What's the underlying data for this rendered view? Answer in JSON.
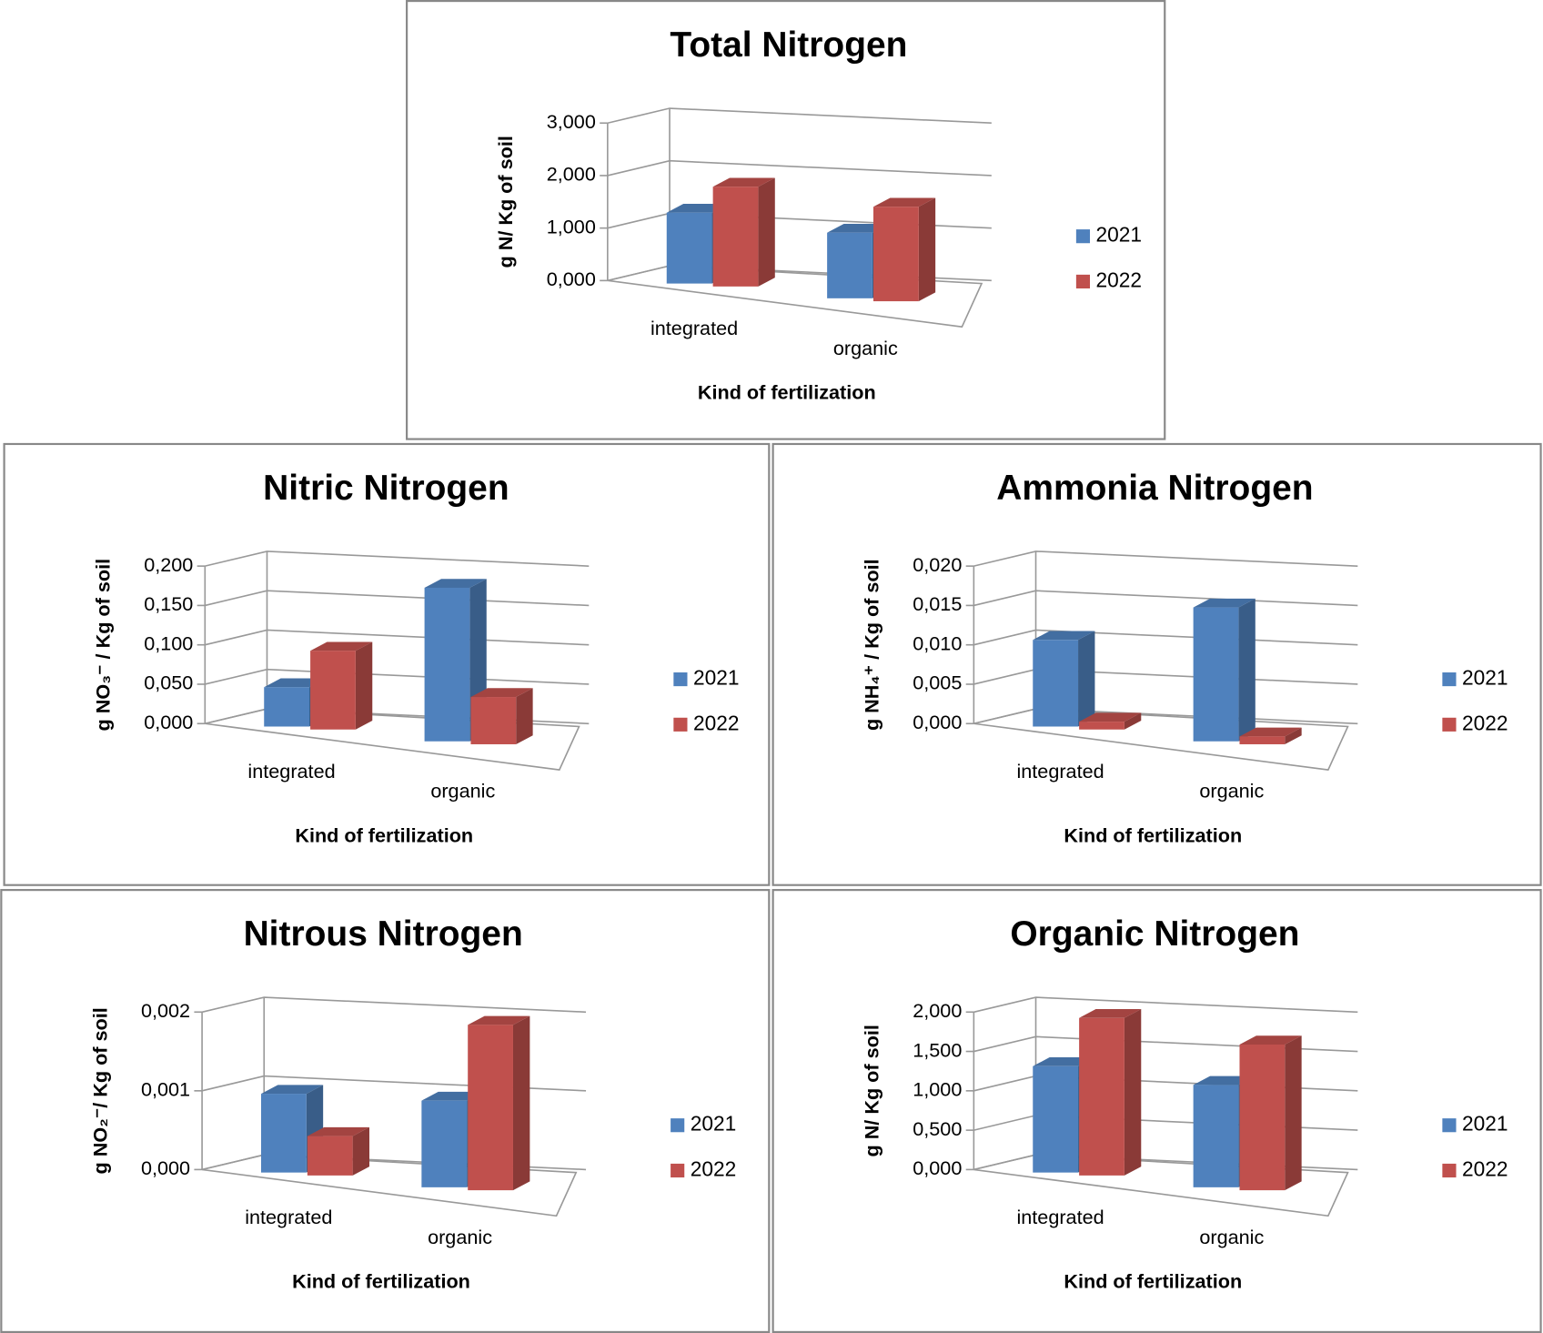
{
  "chart_data": [
    {
      "type": "bar",
      "title": "Total Nitrogen",
      "y_label": "g N/ Kg of soil",
      "x_label": "Kind of fertilization",
      "categories": [
        "integrated",
        "organic"
      ],
      "series": [
        {
          "name": "2021",
          "color": "#4f81bd",
          "values": [
            1.35,
            1.25
          ]
        },
        {
          "name": "2022",
          "color": "#c0504d",
          "values": [
            1.9,
            1.8
          ]
        }
      ],
      "ylim": [
        0,
        3
      ],
      "yticks": [
        {
          "value": 0,
          "label": "0,000"
        },
        {
          "value": 1,
          "label": "1,000"
        },
        {
          "value": 2,
          "label": "2,000"
        },
        {
          "value": 3,
          "label": "3,000"
        }
      ]
    },
    {
      "type": "bar",
      "title": "Nitric Nitrogen",
      "y_label": "g NO₃⁻ / Kg of soil",
      "x_label": "Kind of fertilization",
      "categories": [
        "integrated",
        "organic"
      ],
      "series": [
        {
          "name": "2021",
          "color": "#4f81bd",
          "values": [
            0.05,
            0.195
          ]
        },
        {
          "name": "2022",
          "color": "#c0504d",
          "values": [
            0.1,
            0.06
          ]
        }
      ],
      "ylim": [
        0,
        0.2
      ],
      "yticks": [
        {
          "value": 0,
          "label": "0,000"
        },
        {
          "value": 0.05,
          "label": "0,050"
        },
        {
          "value": 0.1,
          "label": "0,100"
        },
        {
          "value": 0.15,
          "label": "0,150"
        },
        {
          "value": 0.2,
          "label": "0,200"
        }
      ]
    },
    {
      "type": "bar",
      "title": "Ammonia Nitrogen",
      "y_label": "g NH₄⁺ / Kg of soil",
      "x_label": "Kind of fertilization",
      "categories": [
        "integrated",
        "organic"
      ],
      "series": [
        {
          "name": "2021",
          "color": "#4f81bd",
          "values": [
            0.011,
            0.017
          ]
        },
        {
          "name": "2022",
          "color": "#c0504d",
          "values": [
            0.001,
            0.001
          ]
        }
      ],
      "ylim": [
        0,
        0.02
      ],
      "yticks": [
        {
          "value": 0,
          "label": "0,000"
        },
        {
          "value": 0.005,
          "label": "0,005"
        },
        {
          "value": 0.01,
          "label": "0,010"
        },
        {
          "value": 0.015,
          "label": "0,015"
        },
        {
          "value": 0.02,
          "label": "0,020"
        }
      ]
    },
    {
      "type": "bar",
      "title": "Nitrous Nitrogen",
      "y_label": "g NO₂⁻/ Kg of soil",
      "x_label": "Kind of fertilization",
      "categories": [
        "integrated",
        "organic"
      ],
      "series": [
        {
          "name": "2021",
          "color": "#4f81bd",
          "values": [
            0.001,
            0.0011
          ]
        },
        {
          "name": "2022",
          "color": "#c0504d",
          "values": [
            0.0005,
            0.0021
          ]
        }
      ],
      "ylim": [
        0,
        0.002
      ],
      "yticks": [
        {
          "value": 0,
          "label": "0,000"
        },
        {
          "value": 0.001,
          "label": "0,001"
        },
        {
          "value": 0.002,
          "label": "0,002"
        }
      ]
    },
    {
      "type": "bar",
      "title": "Organic Nitrogen",
      "y_label": "g N/ Kg of soil",
      "x_label": "Kind of fertilization",
      "categories": [
        "integrated",
        "organic"
      ],
      "series": [
        {
          "name": "2021",
          "color": "#4f81bd",
          "values": [
            1.35,
            1.3
          ]
        },
        {
          "name": "2022",
          "color": "#c0504d",
          "values": [
            2.0,
            1.85
          ]
        }
      ],
      "ylim": [
        0,
        2
      ],
      "yticks": [
        {
          "value": 0,
          "label": "0,000"
        },
        {
          "value": 0.5,
          "label": "0,500"
        },
        {
          "value": 1,
          "label": "1,000"
        },
        {
          "value": 1.5,
          "label": "1,500"
        },
        {
          "value": 2,
          "label": "2,000"
        }
      ]
    }
  ]
}
